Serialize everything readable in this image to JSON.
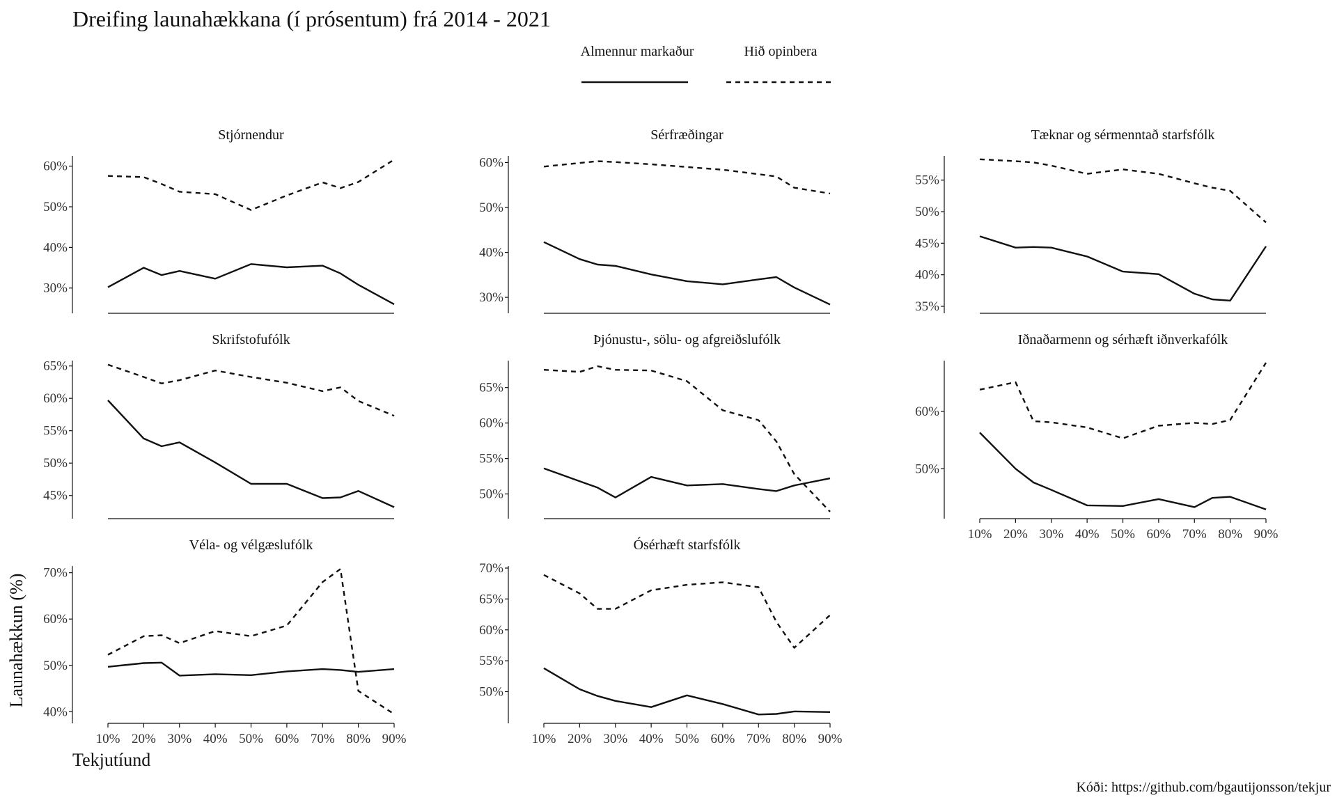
{
  "chart_data": {
    "type": "line",
    "title": "Dreifing launahækkana (í prósentum) frá 2014 - 2021",
    "xlabel": "Tekjutíund",
    "ylabel": "Launahækkun (%)",
    "caption": "Kóði: https://github.com/bgautijonsson/tekjur",
    "legend": {
      "position": "top",
      "entries": [
        {
          "name": "Almennur markaður",
          "style": "solid"
        },
        {
          "name": "Hið opinbera",
          "style": "dashed"
        }
      ]
    },
    "x_ticks": [
      10,
      20,
      30,
      40,
      50,
      60,
      70,
      80,
      90
    ],
    "x_tick_labels": [
      "10%",
      "20%",
      "30%",
      "40%",
      "50%",
      "60%",
      "70%",
      "80%",
      "90%"
    ],
    "x_range": [
      10,
      90
    ],
    "grid": false,
    "panels": [
      {
        "name": "Stjórnendur",
        "ylim": [
          25.5,
          62
        ],
        "y_ticks": [
          30,
          40,
          50,
          60
        ],
        "y_tick_labels": [
          "30%",
          "40%",
          "50%",
          "60%"
        ],
        "series": [
          {
            "name": "Almennur markaður",
            "x": [
              10,
              20,
              25,
              30,
              40,
              50,
              60,
              70,
              75,
              80,
              90
            ],
            "values": [
              30.2,
              35.0,
              33.2,
              34.2,
              32.3,
              35.9,
              35.1,
              35.5,
              33.6,
              30.8,
              26.0
            ]
          },
          {
            "name": "Hið opinbera",
            "x": [
              10,
              20,
              25,
              30,
              40,
              50,
              60,
              70,
              75,
              80,
              90
            ],
            "values": [
              57.6,
              57.3,
              55.6,
              53.7,
              53.1,
              49.2,
              52.8,
              56.0,
              54.6,
              56.1,
              61.6
            ]
          }
        ]
      },
      {
        "name": "Sérfræðingar",
        "ylim": [
          28,
          61
        ],
        "y_ticks": [
          30,
          40,
          50,
          60
        ],
        "y_tick_labels": [
          "30%",
          "40%",
          "50%",
          "60%"
        ],
        "series": [
          {
            "name": "Almennur markaður",
            "x": [
              10,
              20,
              25,
              30,
              40,
              50,
              60,
              70,
              75,
              80,
              90
            ],
            "values": [
              42.3,
              38.5,
              37.3,
              37.0,
              35.1,
              33.6,
              32.9,
              34.0,
              34.5,
              32.2,
              28.4
            ]
          },
          {
            "name": "Hið opinbera",
            "x": [
              10,
              20,
              25,
              30,
              40,
              50,
              60,
              70,
              75,
              80,
              90
            ],
            "values": [
              59.1,
              59.9,
              60.3,
              60.1,
              59.6,
              59.0,
              58.4,
              57.4,
              56.9,
              54.4,
              53.1
            ]
          }
        ]
      },
      {
        "name": "Tæknar og sérmenntað starfsfólk",
        "ylim": [
          35,
          58.5
        ],
        "y_ticks": [
          35,
          40,
          45,
          50,
          55
        ],
        "y_tick_labels": [
          "35%",
          "40%",
          "45%",
          "50%",
          "55%"
        ],
        "series": [
          {
            "name": "Almennur markaður",
            "x": [
              10,
              20,
              25,
              30,
              40,
              50,
              60,
              70,
              75,
              80,
              90
            ],
            "values": [
              46.1,
              44.3,
              44.4,
              44.3,
              42.9,
              40.5,
              40.1,
              37.0,
              36.1,
              35.9,
              44.5
            ]
          },
          {
            "name": "Hið opinbera",
            "x": [
              10,
              20,
              25,
              30,
              40,
              50,
              60,
              70,
              75,
              80,
              90
            ],
            "values": [
              58.3,
              58.0,
              57.8,
              57.3,
              56.0,
              56.7,
              56.0,
              54.5,
              53.8,
              53.3,
              48.3
            ]
          }
        ]
      },
      {
        "name": "Skrifstofufólk",
        "ylim": [
          42.5,
          65.5
        ],
        "y_ticks": [
          45,
          50,
          55,
          60,
          65
        ],
        "y_tick_labels": [
          "45%",
          "50%",
          "55%",
          "60%",
          "65%"
        ],
        "series": [
          {
            "name": "Almennur markaður",
            "x": [
              10,
              20,
              25,
              30,
              40,
              50,
              60,
              70,
              75,
              80,
              90
            ],
            "values": [
              59.7,
              53.8,
              52.6,
              53.2,
              50.1,
              46.8,
              46.8,
              44.6,
              44.7,
              45.7,
              43.2
            ]
          },
          {
            "name": "Hið opinbera",
            "x": [
              10,
              20,
              25,
              30,
              40,
              50,
              60,
              70,
              75,
              80,
              90
            ],
            "values": [
              65.2,
              63.3,
              62.3,
              62.8,
              64.3,
              63.3,
              62.4,
              61.1,
              61.7,
              59.6,
              57.3
            ]
          }
        ]
      },
      {
        "name": "Þjónustu-, sölu- og afgreiðslufólk",
        "ylim": [
          47.5,
          68.5
        ],
        "y_ticks": [
          50,
          55,
          60,
          65
        ],
        "y_tick_labels": [
          "50%",
          "55%",
          "60%",
          "65%"
        ],
        "series": [
          {
            "name": "Almennur markaður",
            "x": [
              10,
              20,
              25,
              30,
              40,
              50,
              60,
              70,
              75,
              80,
              90
            ],
            "values": [
              53.6,
              51.8,
              50.9,
              49.5,
              52.4,
              51.2,
              51.4,
              50.7,
              50.4,
              51.2,
              52.2
            ]
          },
          {
            "name": "Hið opinbera",
            "x": [
              10,
              20,
              25,
              30,
              40,
              50,
              60,
              70,
              75,
              80,
              90
            ],
            "values": [
              67.5,
              67.2,
              68.0,
              67.5,
              67.4,
              65.9,
              61.8,
              60.4,
              57.4,
              52.8,
              47.5
            ]
          }
        ]
      },
      {
        "name": "Iðnaðarmenn og sérhæft iðnverkafólk",
        "ylim": [
          42.5,
          68.5
        ],
        "y_ticks": [
          50,
          60
        ],
        "y_tick_labels": [
          "50%",
          "60%"
        ],
        "series": [
          {
            "name": "Almennur markaður",
            "x": [
              10,
              20,
              25,
              30,
              40,
              50,
              60,
              70,
              75,
              80,
              90
            ],
            "values": [
              56.3,
              50.0,
              47.6,
              46.3,
              43.6,
              43.5,
              44.7,
              43.3,
              44.9,
              45.1,
              42.9
            ]
          },
          {
            "name": "Hið opinbera",
            "x": [
              10,
              20,
              25,
              30,
              40,
              50,
              60,
              70,
              75,
              80,
              90
            ],
            "values": [
              63.8,
              65.1,
              58.3,
              58.1,
              57.2,
              55.3,
              57.5,
              58.0,
              57.8,
              58.5,
              68.5
            ]
          }
        ]
      },
      {
        "name": "Véla- og vélgæslufólk",
        "ylim": [
          39,
          71
        ],
        "y_ticks": [
          40,
          50,
          60,
          70
        ],
        "y_tick_labels": [
          "40%",
          "50%",
          "60%",
          "70%"
        ],
        "series": [
          {
            "name": "Almennur markaður",
            "x": [
              10,
              20,
              25,
              30,
              40,
              50,
              60,
              70,
              75,
              80,
              90
            ],
            "values": [
              49.7,
              50.5,
              50.6,
              47.8,
              48.1,
              47.9,
              48.7,
              49.2,
              49.0,
              48.6,
              49.2
            ]
          },
          {
            "name": "Hið opinbera",
            "x": [
              10,
              20,
              25,
              30,
              40,
              50,
              60,
              70,
              75,
              80,
              90
            ],
            "values": [
              52.3,
              56.3,
              56.5,
              54.8,
              57.4,
              56.3,
              58.6,
              68.0,
              70.8,
              44.5,
              39.5
            ]
          }
        ]
      },
      {
        "name": "Ósérhæft starfsfólk",
        "ylim": [
          46,
          70
        ],
        "y_ticks": [
          50,
          55,
          60,
          65,
          70
        ],
        "y_tick_labels": [
          "50%",
          "55%",
          "60%",
          "65%",
          "70%"
        ],
        "series": [
          {
            "name": "Almennur markaður",
            "x": [
              10,
              20,
              25,
              30,
              40,
              50,
              60,
              70,
              75,
              80,
              90
            ],
            "values": [
              53.8,
              50.4,
              49.3,
              48.5,
              47.5,
              49.4,
              48.0,
              46.3,
              46.4,
              46.8,
              46.7
            ]
          },
          {
            "name": "Hið opinbera",
            "x": [
              10,
              20,
              25,
              30,
              40,
              50,
              60,
              70,
              75,
              80,
              90
            ],
            "values": [
              68.9,
              65.9,
              63.4,
              63.4,
              66.4,
              67.3,
              67.7,
              66.9,
              61.3,
              57.1,
              62.4
            ]
          }
        ]
      }
    ]
  }
}
